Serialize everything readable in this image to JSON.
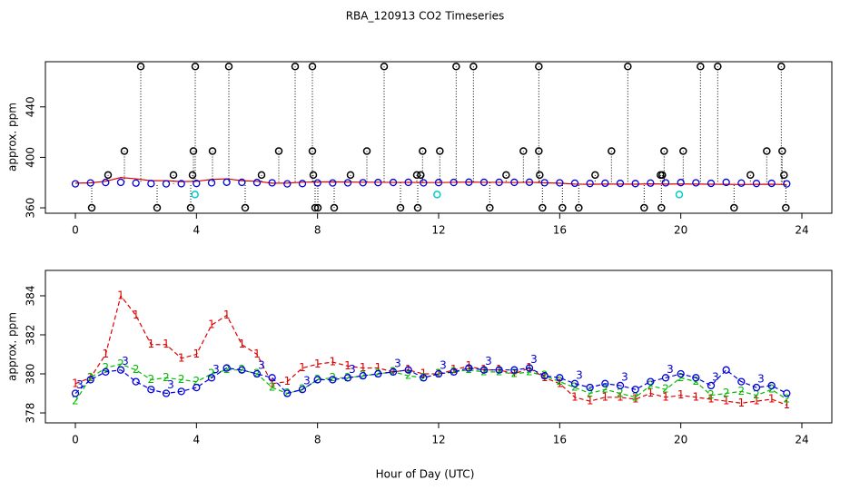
{
  "chart_data": [
    {
      "type": "scatter",
      "title": "RBA_120913  CO2 Timeseries",
      "y_label": "approx. ppm",
      "xlim": [
        -0.99,
        24.99
      ],
      "xticks": [
        0,
        4,
        8,
        12,
        16,
        20,
        24
      ],
      "ylim": [
        355.7,
        475.8
      ],
      "yticks": [
        360,
        400,
        440
      ],
      "x": [
        0,
        0.5,
        1,
        1.5,
        2,
        2.5,
        3,
        3.5,
        4,
        4.5,
        5,
        5.5,
        6,
        6.5,
        7,
        7.5,
        8,
        8.5,
        9,
        9.5,
        10,
        10.5,
        11,
        11.5,
        12,
        12.5,
        13,
        13.5,
        14,
        14.5,
        15,
        15.5,
        16,
        16.5,
        17,
        17.5,
        18,
        18.5,
        19,
        19.5,
        20,
        20.5,
        21,
        21.5,
        22,
        22.5,
        23,
        23.5
      ],
      "series": [
        {
          "color": "#dd0000",
          "style": "line",
          "values": [
            379.5,
            379.8,
            381.0,
            384.0,
            383.0,
            381.5,
            381.5,
            380.8,
            381.0,
            382.5,
            383.0,
            381.5,
            381.0,
            379.5,
            379.6,
            380.3,
            380.5,
            380.6,
            380.4,
            380.3,
            380.3,
            380.1,
            380.2,
            380.0,
            380.0,
            380.2,
            380.4,
            380.2,
            380.2,
            380.0,
            380.3,
            379.8,
            379.5,
            378.8,
            378.6,
            378.8,
            378.8,
            378.7,
            379.0,
            378.8,
            378.9,
            378.8,
            378.7,
            378.6,
            378.5,
            378.6,
            378.7,
            378.4
          ]
        },
        {
          "color": "#0000dd",
          "style": "circle",
          "values": [
            379.0,
            379.7,
            380.1,
            380.2,
            379.6,
            379.2,
            379.0,
            379.1,
            379.3,
            379.8,
            380.3,
            380.2,
            380.0,
            379.8,
            379.0,
            379.2,
            379.7,
            379.7,
            379.8,
            379.9,
            380.0,
            380.1,
            380.2,
            379.8,
            380.0,
            380.1,
            380.3,
            380.2,
            380.2,
            380.2,
            380.3,
            379.9,
            379.8,
            379.5,
            379.3,
            379.5,
            379.4,
            379.2,
            379.6,
            379.8,
            380.0,
            379.8,
            379.4,
            380.2,
            379.6,
            379.3,
            379.4,
            379.0
          ]
        }
      ],
      "points": [
        {
          "color": "#00cccc",
          "style": "circle",
          "x": [
            3.95,
            11.95,
            19.95
          ],
          "values": [
            370.5,
            370.5,
            370.5
          ]
        },
        {
          "color": "#000000",
          "style": "circle-drop",
          "x": [
            0.54,
            1.08,
            1.62,
            2.16,
            2.7,
            3.24,
            3.81,
            3.87,
            3.9,
            3.96,
            4.53,
            5.07,
            5.61,
            6.15,
            6.72,
            7.26,
            7.83,
            7.83,
            7.86,
            7.92,
            8.01,
            8.55,
            9.09,
            9.63,
            10.2,
            10.74,
            11.28,
            11.31,
            11.41,
            11.47,
            12.04,
            12.58,
            13.15,
            13.69,
            14.23,
            14.8,
            15.31,
            15.31,
            15.34,
            15.43,
            16.09,
            16.63,
            17.17,
            17.71,
            18.25,
            18.79,
            19.33,
            19.36,
            19.39,
            19.45,
            20.08,
            20.65,
            21.22,
            21.76,
            22.3,
            22.84,
            23.32,
            23.35,
            23.41,
            23.47
          ],
          "values": [
            360,
            386,
            405,
            472,
            360,
            386,
            360,
            386,
            405,
            472,
            405,
            472,
            360,
            386,
            405,
            472,
            472,
            405,
            386,
            360,
            360,
            360,
            386,
            405,
            472,
            360,
            386,
            360,
            386,
            405,
            405,
            472,
            472,
            360,
            386,
            405,
            472,
            405,
            386,
            360,
            360,
            360,
            386,
            405,
            472,
            360,
            386,
            360,
            386,
            405,
            405,
            472,
            472,
            360,
            386,
            405,
            472,
            405,
            386,
            360
          ]
        }
      ]
    },
    {
      "type": "line",
      "x_label": "Hour of Day (UTC)",
      "y_label": "approx. ppm",
      "xlim": [
        -0.99,
        24.99
      ],
      "xticks": [
        0,
        4,
        8,
        12,
        16,
        20,
        24
      ],
      "ylim": [
        377.49,
        385.3
      ],
      "yticks": [
        378,
        380,
        382,
        384
      ],
      "x": [
        0,
        0.5,
        1,
        1.5,
        2,
        2.5,
        3,
        3.5,
        4,
        4.5,
        5,
        5.5,
        6,
        6.5,
        7,
        7.5,
        8,
        8.5,
        9,
        9.5,
        10,
        10.5,
        11,
        11.5,
        12,
        12.5,
        13,
        13.5,
        14,
        14.5,
        15,
        15.5,
        16,
        16.5,
        17,
        17.5,
        18,
        18.5,
        19,
        19.5,
        20,
        20.5,
        21,
        21.5,
        22,
        22.5,
        23,
        23.5
      ],
      "series": [
        {
          "marker": "1",
          "color": "#dd0000",
          "values": [
            379.5,
            379.8,
            381.0,
            384.0,
            383.0,
            381.5,
            381.5,
            380.8,
            381.0,
            382.5,
            383.0,
            381.5,
            381.0,
            379.5,
            379.6,
            380.3,
            380.5,
            380.6,
            380.4,
            380.3,
            380.3,
            380.1,
            380.2,
            380.0,
            380.0,
            380.2,
            380.4,
            380.2,
            380.2,
            380.0,
            380.3,
            379.8,
            379.5,
            378.8,
            378.6,
            378.8,
            378.8,
            378.7,
            379.0,
            378.8,
            378.9,
            378.8,
            378.7,
            378.6,
            378.5,
            378.6,
            378.7,
            378.4
          ]
        },
        {
          "marker": "2",
          "color": "#00bb00",
          "values": [
            378.6,
            379.8,
            380.3,
            380.5,
            380.2,
            379.7,
            379.8,
            379.7,
            379.6,
            380.0,
            380.2,
            380.2,
            380.0,
            379.3,
            379.0,
            379.2,
            379.7,
            379.8,
            379.8,
            379.9,
            380.0,
            380.1,
            379.9,
            379.8,
            380.0,
            380.1,
            380.2,
            380.1,
            380.1,
            380.0,
            380.1,
            379.9,
            379.6,
            379.3,
            379.0,
            379.2,
            379.0,
            378.8,
            379.4,
            379.2,
            379.8,
            379.6,
            378.9,
            379.0,
            379.1,
            378.9,
            379.2,
            378.7
          ]
        },
        {
          "marker": "3",
          "color": "#0000dd",
          "values": [
            379.0,
            379.7,
            380.1,
            380.2,
            379.6,
            379.2,
            379.0,
            379.1,
            379.3,
            379.8,
            380.3,
            380.2,
            380.0,
            379.8,
            379.0,
            379.2,
            379.7,
            379.7,
            379.8,
            379.9,
            380.0,
            380.1,
            380.2,
            379.8,
            380.0,
            380.1,
            380.3,
            380.2,
            380.2,
            380.2,
            380.3,
            379.9,
            379.8,
            379.5,
            379.3,
            379.5,
            379.4,
            379.2,
            379.6,
            379.8,
            380.0,
            379.8,
            379.4,
            380.2,
            379.6,
            379.3,
            379.4,
            379.0
          ]
        }
      ]
    }
  ]
}
